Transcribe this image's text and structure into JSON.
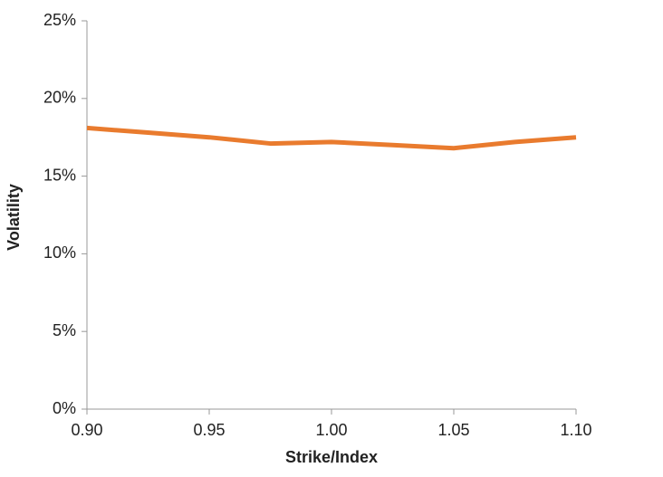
{
  "chart_data": {
    "type": "line",
    "x": [
      0.9,
      0.925,
      0.95,
      0.975,
      1.0,
      1.025,
      1.05,
      1.075,
      1.1
    ],
    "series": [
      {
        "color": "#e97b2e",
        "values": [
          18.1,
          17.8,
          17.5,
          17.1,
          17.2,
          17.0,
          16.8,
          17.2,
          17.5
        ]
      }
    ],
    "xlabel": "Strike/Index",
    "ylabel": "Volatility",
    "xlim": [
      0.9,
      1.1
    ],
    "xticks": [
      {
        "value": 0.9,
        "label": "0.90"
      },
      {
        "value": 0.95,
        "label": "0.95"
      },
      {
        "value": 1.0,
        "label": "1.00"
      },
      {
        "value": 1.05,
        "label": "1.05"
      },
      {
        "value": 1.1,
        "label": "1.10"
      }
    ],
    "ylim": [
      0,
      25
    ],
    "yticks": [
      {
        "value": 0,
        "label": "0%"
      },
      {
        "value": 5,
        "label": "5%"
      },
      {
        "value": 10,
        "label": "10%"
      },
      {
        "value": 15,
        "label": "15%"
      },
      {
        "value": 20,
        "label": "20%"
      },
      {
        "value": 25,
        "label": "25%"
      }
    ],
    "grid": false
  }
}
